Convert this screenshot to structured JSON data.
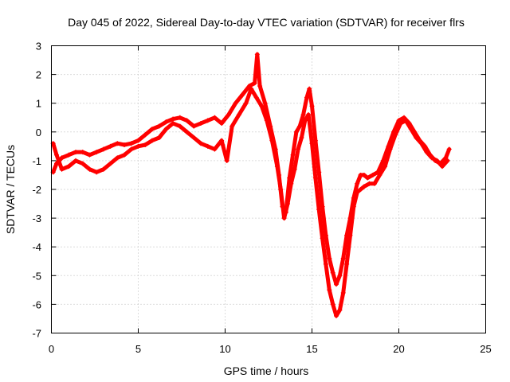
{
  "chart_data": {
    "type": "scatter",
    "title": "Day 045 of 2022, Sidereal Day-to-day VTEC variation (SDTVAR) for receiver flrs",
    "xlabel": "GPS time / hours",
    "ylabel": "SDTVAR / TECUs",
    "xlim": [
      0,
      25
    ],
    "ylim": [
      -7,
      3
    ],
    "xticks": [
      "0",
      "5",
      "10",
      "15",
      "20",
      "25"
    ],
    "yticks": [
      "-7",
      "-6",
      "-5",
      "-4",
      "-3",
      "-2",
      "-1",
      "0",
      "1",
      "2",
      "3"
    ],
    "grid": true,
    "marker": "plus",
    "color": "#ff0000",
    "series": [
      {
        "values": [
          [
            0.1,
            -1.4
          ],
          [
            0.3,
            -1.1
          ],
          [
            0.6,
            -0.9
          ],
          [
            1.0,
            -0.8
          ],
          [
            1.4,
            -0.7
          ],
          [
            1.8,
            -0.7
          ],
          [
            2.2,
            -0.8
          ],
          [
            2.6,
            -0.7
          ],
          [
            3.0,
            -0.6
          ],
          [
            3.4,
            -0.5
          ],
          [
            3.8,
            -0.4
          ],
          [
            4.2,
            -0.45
          ],
          [
            4.6,
            -0.4
          ],
          [
            5.0,
            -0.3
          ],
          [
            5.4,
            -0.1
          ],
          [
            5.8,
            0.1
          ],
          [
            6.2,
            0.2
          ],
          [
            6.6,
            0.35
          ],
          [
            7.0,
            0.45
          ],
          [
            7.4,
            0.5
          ],
          [
            7.8,
            0.4
          ],
          [
            8.2,
            0.2
          ],
          [
            8.6,
            0.3
          ],
          [
            9.0,
            0.4
          ],
          [
            9.4,
            0.5
          ],
          [
            9.8,
            0.3
          ],
          [
            10.2,
            0.6
          ],
          [
            10.6,
            1.0
          ],
          [
            11.0,
            1.3
          ],
          [
            11.4,
            1.6
          ],
          [
            11.7,
            1.7
          ],
          [
            11.85,
            2.7
          ],
          [
            12.0,
            1.6
          ],
          [
            12.3,
            1.0
          ],
          [
            12.6,
            0.2
          ],
          [
            12.9,
            -0.6
          ],
          [
            13.1,
            -1.5
          ],
          [
            13.3,
            -2.6
          ],
          [
            13.5,
            -2.8
          ],
          [
            13.7,
            -1.6
          ],
          [
            13.9,
            -0.8
          ],
          [
            14.1,
            0.0
          ],
          [
            14.3,
            0.2
          ],
          [
            14.5,
            0.6
          ],
          [
            14.7,
            1.2
          ],
          [
            14.85,
            1.5
          ],
          [
            15.0,
            0.9
          ],
          [
            15.2,
            -0.3
          ],
          [
            15.4,
            -1.4
          ],
          [
            15.6,
            -2.6
          ],
          [
            15.8,
            -3.6
          ],
          [
            16.0,
            -4.4
          ],
          [
            16.2,
            -4.9
          ],
          [
            16.4,
            -5.3
          ],
          [
            16.6,
            -5.0
          ],
          [
            16.8,
            -4.4
          ],
          [
            17.0,
            -3.6
          ],
          [
            17.2,
            -3.0
          ],
          [
            17.4,
            -2.3
          ],
          [
            17.6,
            -1.8
          ],
          [
            17.8,
            -1.5
          ],
          [
            18.0,
            -1.5
          ],
          [
            18.2,
            -1.6
          ],
          [
            18.5,
            -1.5
          ],
          [
            18.8,
            -1.4
          ],
          [
            19.1,
            -1.0
          ],
          [
            19.4,
            -0.5
          ],
          [
            19.7,
            0.0
          ],
          [
            20.0,
            0.4
          ],
          [
            20.3,
            0.5
          ],
          [
            20.6,
            0.3
          ],
          [
            20.9,
            0.0
          ],
          [
            21.2,
            -0.3
          ],
          [
            21.5,
            -0.5
          ],
          [
            21.8,
            -0.8
          ],
          [
            22.1,
            -1.0
          ],
          [
            22.4,
            -1.1
          ],
          [
            22.7,
            -0.9
          ],
          [
            22.9,
            -0.6
          ]
        ]
      },
      {
        "values": [
          [
            0.1,
            -0.4
          ],
          [
            0.3,
            -0.8
          ],
          [
            0.6,
            -1.3
          ],
          [
            1.0,
            -1.2
          ],
          [
            1.4,
            -1.0
          ],
          [
            1.8,
            -1.1
          ],
          [
            2.2,
            -1.3
          ],
          [
            2.6,
            -1.4
          ],
          [
            3.0,
            -1.3
          ],
          [
            3.4,
            -1.1
          ],
          [
            3.8,
            -0.9
          ],
          [
            4.2,
            -0.8
          ],
          [
            4.6,
            -0.6
          ],
          [
            5.0,
            -0.5
          ],
          [
            5.4,
            -0.45
          ],
          [
            5.8,
            -0.3
          ],
          [
            6.2,
            -0.2
          ],
          [
            6.6,
            0.1
          ],
          [
            7.0,
            0.3
          ],
          [
            7.4,
            0.2
          ],
          [
            7.8,
            0.0
          ],
          [
            8.2,
            -0.2
          ],
          [
            8.6,
            -0.4
          ],
          [
            9.0,
            -0.5
          ],
          [
            9.4,
            -0.6
          ],
          [
            9.8,
            -0.3
          ],
          [
            10.1,
            -1.0
          ],
          [
            10.4,
            0.2
          ],
          [
            10.8,
            0.6
          ],
          [
            11.2,
            1.0
          ],
          [
            11.5,
            1.5
          ],
          [
            11.8,
            1.2
          ],
          [
            12.1,
            0.9
          ],
          [
            12.4,
            0.4
          ],
          [
            12.7,
            -0.3
          ],
          [
            13.0,
            -1.2
          ],
          [
            13.2,
            -2.0
          ],
          [
            13.4,
            -3.0
          ],
          [
            13.6,
            -2.5
          ],
          [
            13.8,
            -1.8
          ],
          [
            14.0,
            -1.3
          ],
          [
            14.2,
            -0.6
          ],
          [
            14.4,
            -0.2
          ],
          [
            14.6,
            0.4
          ],
          [
            14.8,
            0.6
          ],
          [
            15.0,
            -0.4
          ],
          [
            15.2,
            -1.6
          ],
          [
            15.4,
            -2.7
          ],
          [
            15.6,
            -3.7
          ],
          [
            15.8,
            -4.6
          ],
          [
            16.0,
            -5.5
          ],
          [
            16.2,
            -6.0
          ],
          [
            16.4,
            -6.4
          ],
          [
            16.6,
            -6.2
          ],
          [
            16.8,
            -5.6
          ],
          [
            17.0,
            -4.6
          ],
          [
            17.2,
            -3.6
          ],
          [
            17.4,
            -2.6
          ],
          [
            17.6,
            -2.1
          ],
          [
            17.8,
            -2.0
          ],
          [
            18.0,
            -1.9
          ],
          [
            18.3,
            -1.8
          ],
          [
            18.6,
            -1.8
          ],
          [
            18.9,
            -1.5
          ],
          [
            19.2,
            -1.2
          ],
          [
            19.5,
            -0.6
          ],
          [
            19.8,
            -0.1
          ],
          [
            20.1,
            0.3
          ],
          [
            20.4,
            0.4
          ],
          [
            20.7,
            0.1
          ],
          [
            21.0,
            -0.2
          ],
          [
            21.3,
            -0.4
          ],
          [
            21.6,
            -0.7
          ],
          [
            21.9,
            -0.9
          ],
          [
            22.2,
            -1.0
          ],
          [
            22.5,
            -1.2
          ],
          [
            22.8,
            -1.0
          ]
        ]
      }
    ]
  }
}
